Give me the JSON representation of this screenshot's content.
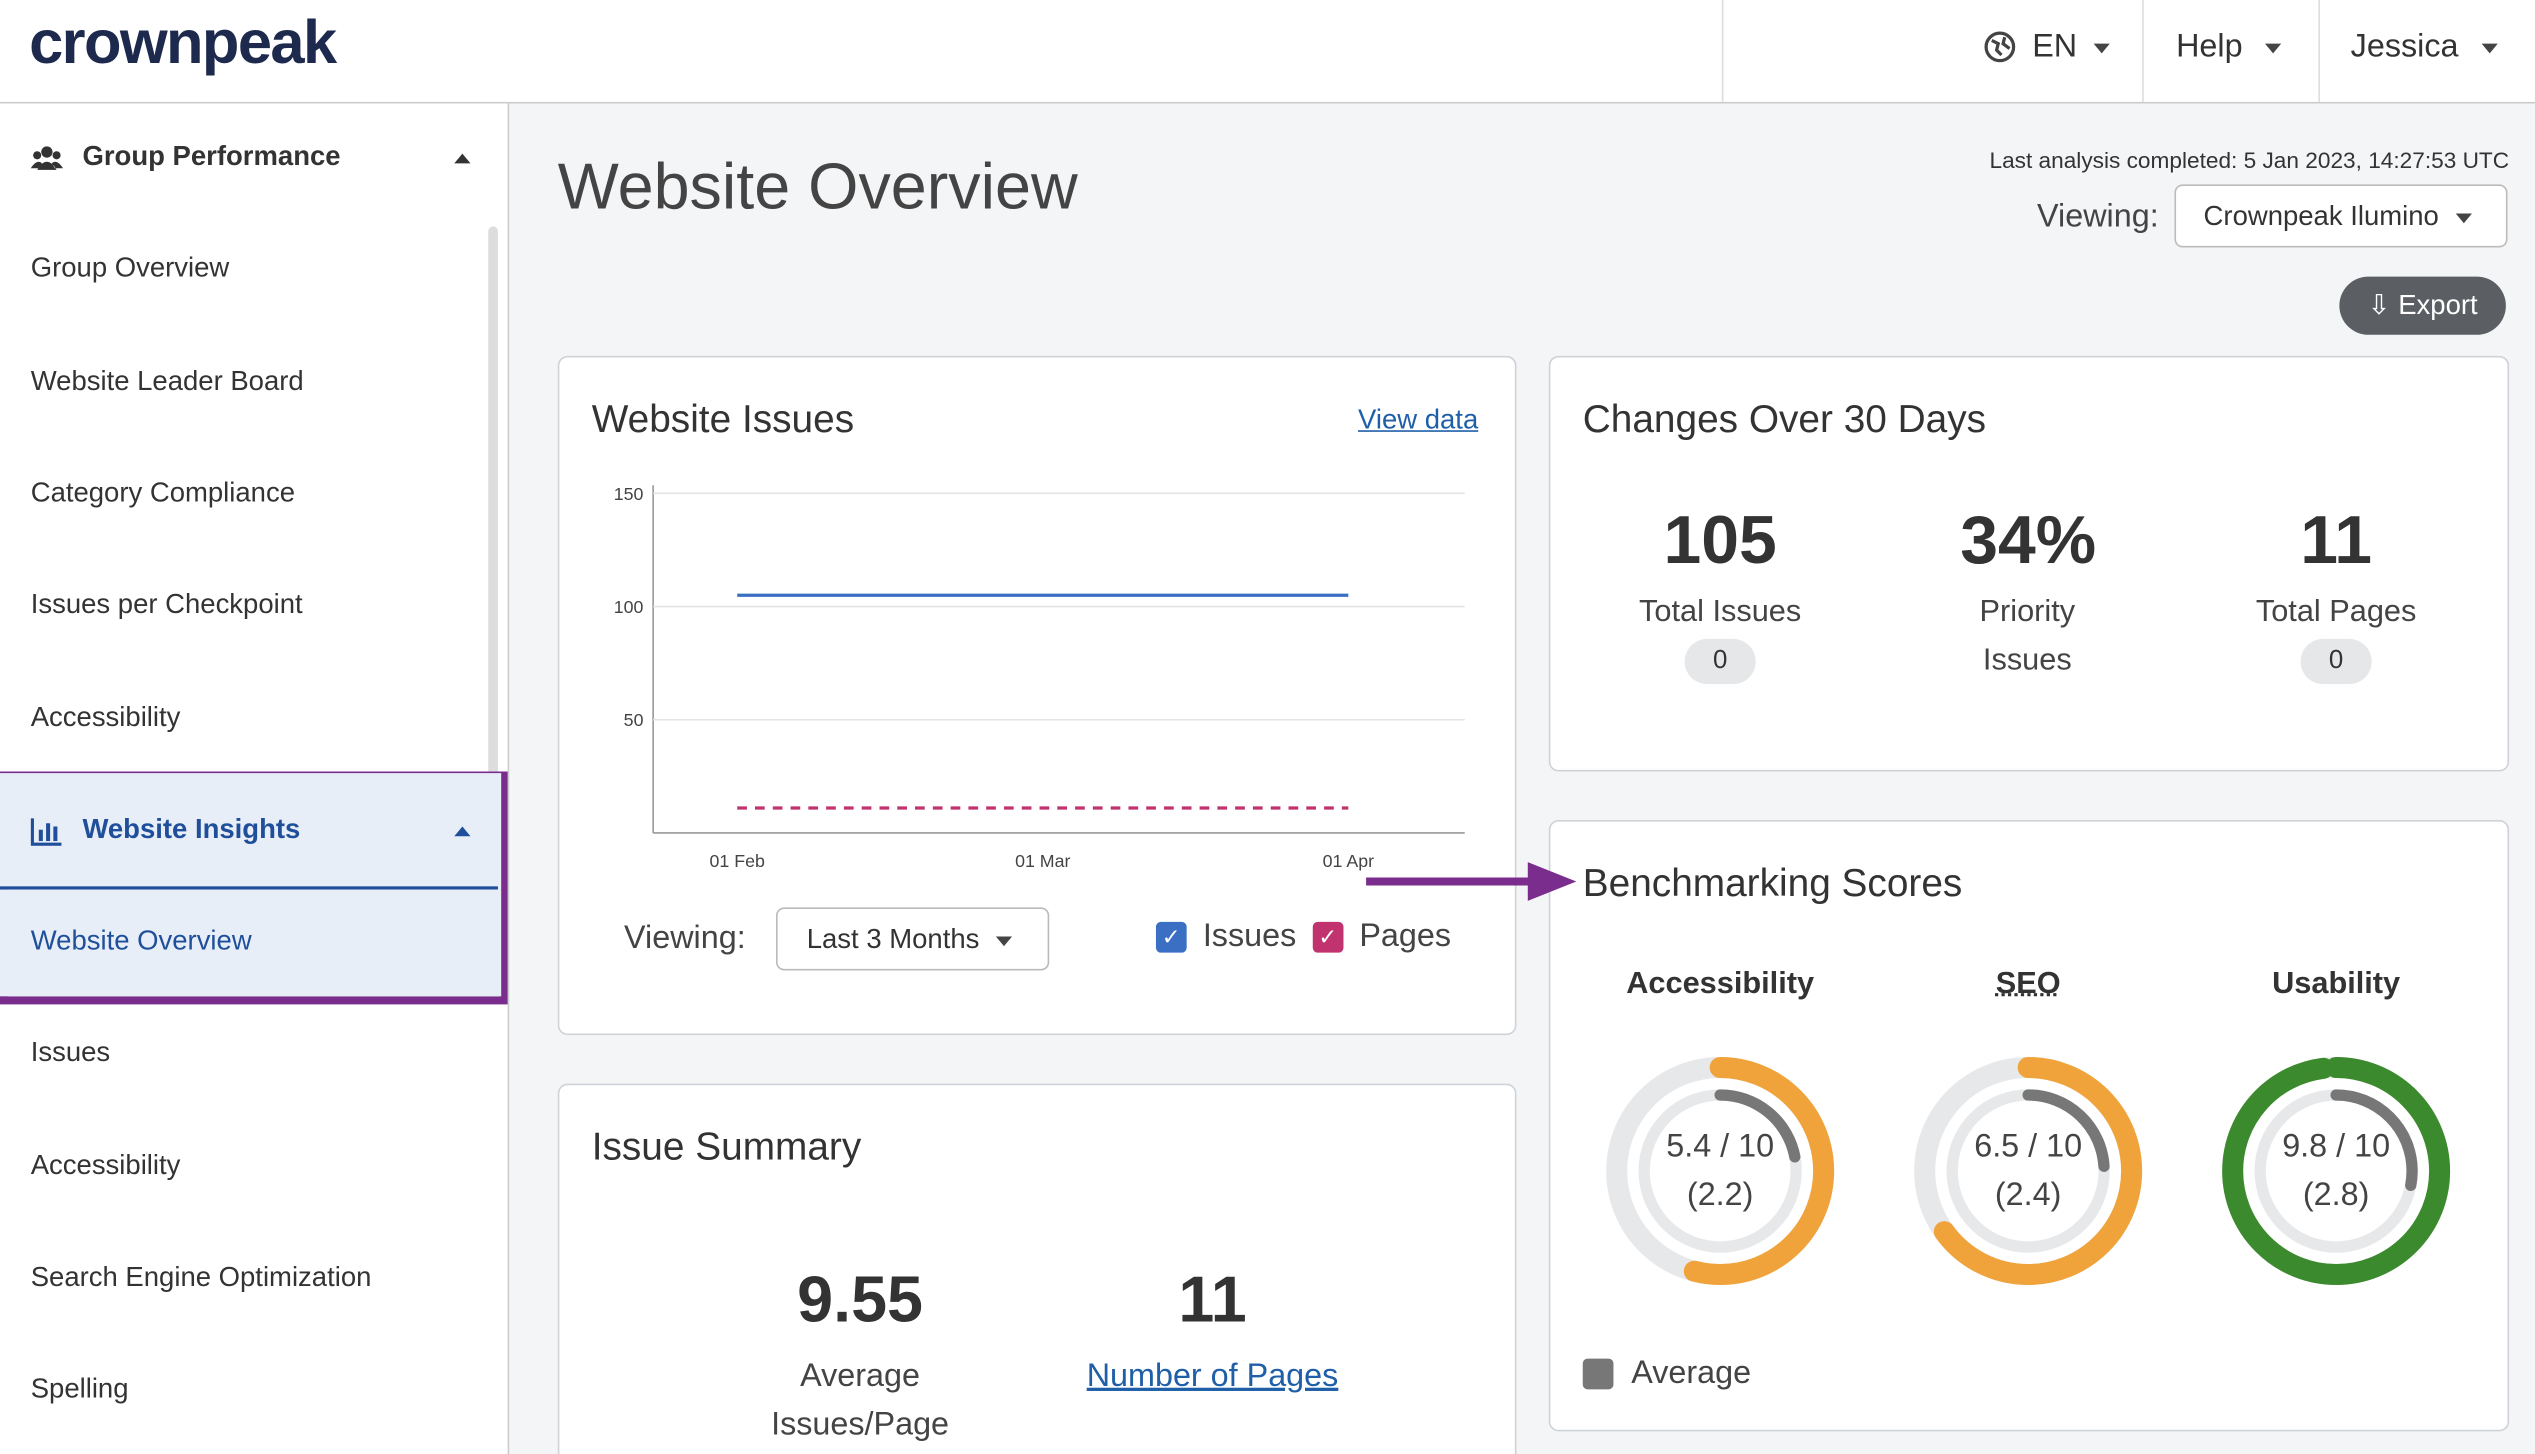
{
  "header": {
    "logo": "crownpeak",
    "language": "EN",
    "help": "Help",
    "user": "Jessica"
  },
  "sidebar": {
    "groups": [
      {
        "title": "Group Performance",
        "items": [
          "Group Overview",
          "Website Leader Board",
          "Category Compliance",
          "Issues per Checkpoint",
          "Accessibility"
        ]
      },
      {
        "title": "Website Insights",
        "items": [
          "Website Overview",
          "Issues",
          "Accessibility",
          "Search Engine Optimization",
          "Spelling"
        ]
      }
    ]
  },
  "page": {
    "title": "Website Overview",
    "last_analysis": "Last analysis completed: 5 Jan 2023, 14:27:53 UTC",
    "viewing_label": "Viewing:",
    "viewing_value": "Crownpeak Ilumino",
    "export": "Export"
  },
  "chart_data": {
    "type": "line",
    "title": "Website Issues",
    "link": "View data",
    "categories": [
      "01 Feb",
      "01 Mar",
      "01 Apr"
    ],
    "series": [
      {
        "name": "Issues",
        "color": "#3a6fc4",
        "values": [
          105,
          105,
          105
        ]
      },
      {
        "name": "Pages",
        "color": "#c0336e",
        "values": [
          11,
          11,
          11
        ]
      }
    ],
    "ylim": [
      0,
      150
    ],
    "yticks": [
      50,
      100,
      150
    ],
    "grid": true,
    "viewing_label": "Viewing:",
    "range": "Last 3 Months"
  },
  "changes": {
    "title": "Changes Over 30 Days",
    "stats": [
      {
        "value": 105,
        "label": "Total Issues",
        "change": 0
      },
      {
        "value": "34%",
        "label": "Priority Issues"
      },
      {
        "value": 11,
        "label": "Total Pages",
        "change": 0
      }
    ]
  },
  "summary": {
    "title": "Issue Summary",
    "stats": [
      {
        "value": 9.55,
        "label": "Average Issues/Page"
      },
      {
        "value": 11,
        "label": "Number of Pages"
      }
    ]
  },
  "benchmarking": {
    "title": "Benchmarking Scores",
    "max": 10,
    "legend": "Average",
    "average_color": "#777777",
    "scores": [
      {
        "name": "Accessibility",
        "color": "#f0a33a",
        "score": {
          "value": 5.4,
          "label": "5.4 / 10"
        },
        "average": {
          "value": 2.2,
          "label": "(2.2)"
        }
      },
      {
        "name": "SEO",
        "color": "#f0a33a",
        "score": {
          "value": 6.5,
          "label": "6.5 / 10"
        },
        "average": {
          "value": 2.4,
          "label": "(2.4)"
        }
      },
      {
        "name": "Usability",
        "color": "#3c8a2e",
        "score": {
          "value": 9.8,
          "label": "9.8 / 10"
        },
        "average": {
          "value": 2.8,
          "label": "(2.8)"
        }
      }
    ]
  }
}
